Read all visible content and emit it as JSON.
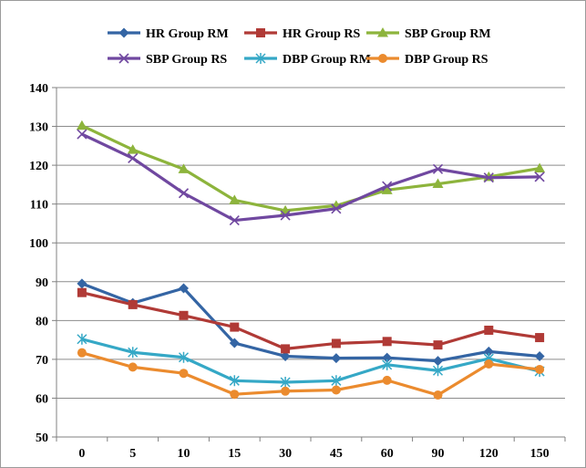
{
  "chart_data": {
    "type": "line",
    "title": "",
    "xlabel": "",
    "ylabel": "",
    "categories": [
      "0",
      "5",
      "10",
      "15",
      "30",
      "45",
      "60",
      "90",
      "120",
      "150"
    ],
    "ylim": [
      50,
      140
    ],
    "yticks": [
      50,
      60,
      70,
      80,
      90,
      100,
      110,
      120,
      130,
      140
    ],
    "grid": "horizontal",
    "legend_position": "top",
    "series": [
      {
        "name": "HR Group RM",
        "color": "#3465A4",
        "marker": "diamond",
        "values": [
          89.5,
          84.5,
          88.3,
          74.2,
          70.8,
          70.3,
          70.4,
          69.6,
          72.0,
          70.8
        ]
      },
      {
        "name": "HR Group RS",
        "color": "#B03A36",
        "marker": "square",
        "values": [
          87.2,
          84.1,
          81.3,
          78.3,
          72.7,
          74.1,
          74.6,
          73.7,
          77.5,
          75.6
        ]
      },
      {
        "name": "SBP Group RM",
        "color": "#8DB43C",
        "marker": "triangle",
        "values": [
          130.2,
          124.0,
          119.0,
          111.0,
          108.3,
          109.6,
          113.6,
          115.2,
          117.0,
          119.2
        ]
      },
      {
        "name": "SBP Group RS",
        "color": "#7048A0",
        "marker": "x",
        "values": [
          128.0,
          121.8,
          112.8,
          105.8,
          107.1,
          108.8,
          114.6,
          119.0,
          116.8,
          117.0
        ]
      },
      {
        "name": "DBP Group RM",
        "color": "#35A8C6",
        "marker": "star",
        "values": [
          75.2,
          71.8,
          70.5,
          64.5,
          64.1,
          64.5,
          68.6,
          67.1,
          70.2,
          66.9
        ]
      },
      {
        "name": "DBP Group RS",
        "color": "#EB8B2E",
        "marker": "circle",
        "values": [
          71.7,
          68.0,
          66.4,
          61.0,
          61.8,
          62.1,
          64.6,
          60.8,
          68.8,
          67.4
        ]
      }
    ]
  }
}
